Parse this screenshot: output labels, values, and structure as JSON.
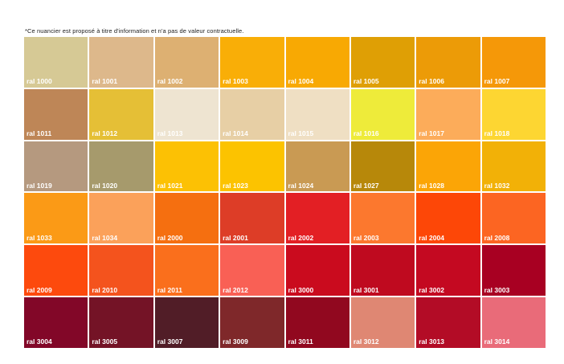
{
  "disclaimer": "*Ce nuancier est proposé à titre d'information et n'a pas de valeur contractuelle.",
  "swatches": [
    {
      "label": "ral 1000",
      "color": "#D6C995"
    },
    {
      "label": "ral 1001",
      "color": "#DDB88B"
    },
    {
      "label": "ral 1002",
      "color": "#DDB072"
    },
    {
      "label": "ral 1003",
      "color": "#F9AE07"
    },
    {
      "label": "ral 1004",
      "color": "#F8A903"
    },
    {
      "label": "ral 1005",
      "color": "#DF9F05"
    },
    {
      "label": "ral 1006",
      "color": "#EC9B07"
    },
    {
      "label": "ral 1007",
      "color": "#F59808"
    },
    {
      "label": "ral 1011",
      "color": "#BE8657"
    },
    {
      "label": "ral 1012",
      "color": "#E5BF36"
    },
    {
      "label": "ral 1013",
      "color": "#EEE4D1"
    },
    {
      "label": "ral 1014",
      "color": "#E7CFA5"
    },
    {
      "label": "ral 1015",
      "color": "#EFDFC3"
    },
    {
      "label": "ral 1016",
      "color": "#EEEB3A"
    },
    {
      "label": "ral 1017",
      "color": "#FCAC5A"
    },
    {
      "label": "ral 1018",
      "color": "#FDD632"
    },
    {
      "label": "ral 1019",
      "color": "#B5997F"
    },
    {
      "label": "ral 1020",
      "color": "#A69A6C"
    },
    {
      "label": "ral 1021",
      "color": "#FCC104"
    },
    {
      "label": "ral 1023",
      "color": "#FCC300"
    },
    {
      "label": "ral 1024",
      "color": "#C99A53"
    },
    {
      "label": "ral 1027",
      "color": "#B7880A"
    },
    {
      "label": "ral 1028",
      "color": "#FBA506"
    },
    {
      "label": "ral 1032",
      "color": "#F2B107"
    },
    {
      "label": "ral 1033",
      "color": "#FB9A16"
    },
    {
      "label": "ral 1034",
      "color": "#FBA15A"
    },
    {
      "label": "ral 2000",
      "color": "#F56F10"
    },
    {
      "label": "ral 2001",
      "color": "#DD3D27"
    },
    {
      "label": "ral 2002",
      "color": "#E31F24"
    },
    {
      "label": "ral 2003",
      "color": "#FC782E"
    },
    {
      "label": "ral 2004",
      "color": "#FD4707"
    },
    {
      "label": "ral 2008",
      "color": "#FC6522"
    },
    {
      "label": "ral 2009",
      "color": "#FD4A0D"
    },
    {
      "label": "ral 2010",
      "color": "#F4531D"
    },
    {
      "label": "ral 2011",
      "color": "#FA6F1C"
    },
    {
      "label": "ral 2012",
      "color": "#F96055"
    },
    {
      "label": "ral 3000",
      "color": "#CA0B1E"
    },
    {
      "label": "ral 3001",
      "color": "#BF0A1F"
    },
    {
      "label": "ral 3002",
      "color": "#C40921"
    },
    {
      "label": "ral 3003",
      "color": "#A80022"
    },
    {
      "label": "ral 3004",
      "color": "#820728"
    },
    {
      "label": "ral 3005",
      "color": "#741326"
    },
    {
      "label": "ral 3007",
      "color": "#511D27"
    },
    {
      "label": "ral 3009",
      "color": "#7F282A"
    },
    {
      "label": "ral 3011",
      "color": "#91081F"
    },
    {
      "label": "ral 3012",
      "color": "#DF8773"
    },
    {
      "label": "ral 3013",
      "color": "#B30C26"
    },
    {
      "label": "ral 3014",
      "color": "#E96B79"
    }
  ]
}
